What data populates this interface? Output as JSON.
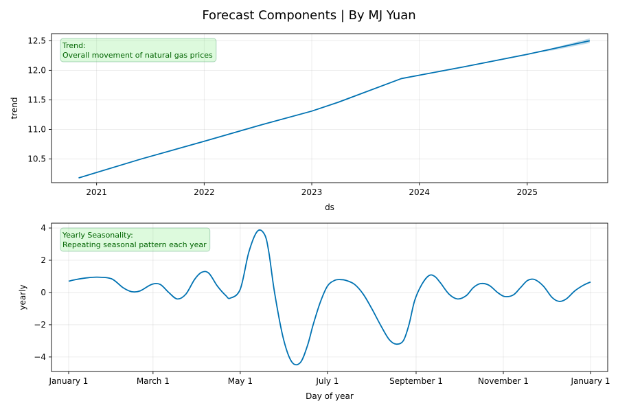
{
  "suptitle": "Forecast Components | By MJ Yuan",
  "chart_data": [
    {
      "type": "line",
      "name": "trend-panel",
      "xlabel": "ds",
      "ylabel": "trend",
      "x_axis_kind": "date",
      "xlim": [
        "2020-08-01",
        "2025-10-01"
      ],
      "ylim": [
        10.1,
        12.62
      ],
      "xticks": [
        {
          "value": "2021-01-01",
          "label": "2021"
        },
        {
          "value": "2022-01-01",
          "label": "2022"
        },
        {
          "value": "2023-01-01",
          "label": "2023"
        },
        {
          "value": "2024-01-01",
          "label": "2024"
        },
        {
          "value": "2025-01-01",
          "label": "2025"
        }
      ],
      "yticks": [
        10.5,
        11.0,
        11.5,
        12.0,
        12.5
      ],
      "ytick_labels": [
        "10.5",
        "11.0",
        "11.5",
        "12.0",
        "12.5"
      ],
      "grid": true,
      "annotation": {
        "title": "Trend:",
        "text": "Overall movement of natural gas prices"
      },
      "series": [
        {
          "x": [
            "2020-11-01",
            "2021-06-01",
            "2022-01-01",
            "2022-07-01",
            "2023-01-01",
            "2023-04-01",
            "2023-11-01",
            "2024-06-01",
            "2025-01-01",
            "2025-08-01"
          ],
          "y": [
            10.18,
            10.5,
            10.8,
            11.06,
            11.31,
            11.46,
            11.86,
            12.06,
            12.27,
            12.5
          ]
        }
      ],
      "uncertainty": {
        "x": [
          "2025-01-01",
          "2025-04-01",
          "2025-08-01"
        ],
        "lower": [
          12.27,
          12.34,
          12.46
        ],
        "upper": [
          12.27,
          12.38,
          12.54
        ]
      },
      "line_color": "#0072B2"
    },
    {
      "type": "line",
      "name": "yearly-panel",
      "xlabel": "Day of year",
      "ylabel": "yearly",
      "x_axis_kind": "day-of-year",
      "xlim": [
        -12,
        377
      ],
      "ylim": [
        -4.9,
        4.3
      ],
      "xticks": [
        {
          "value": 0,
          "label": "January 1"
        },
        {
          "value": 59,
          "label": "March 1"
        },
        {
          "value": 120,
          "label": "May 1"
        },
        {
          "value": 181,
          "label": "July 1"
        },
        {
          "value": 243,
          "label": "September 1"
        },
        {
          "value": 304,
          "label": "November 1"
        },
        {
          "value": 365,
          "label": "January 1"
        }
      ],
      "yticks": [
        -4,
        -2,
        0,
        2,
        4
      ],
      "ytick_labels": [
        "−4",
        "−2",
        "0",
        "2",
        "4"
      ],
      "grid": true,
      "annotation": {
        "title": "Yearly Seasonality:",
        "text": "Repeating seasonal pattern each year"
      },
      "series": [
        {
          "x": [
            0,
            5,
            12,
            20,
            30,
            38,
            44,
            50,
            58,
            64,
            70,
            76,
            82,
            88,
            93,
            98,
            104,
            110,
            113,
            120,
            126,
            132,
            137,
            140,
            144,
            150,
            156,
            162,
            167,
            171,
            176,
            181,
            186,
            190,
            194,
            200,
            206,
            212,
            218,
            224,
            229,
            234,
            238,
            242,
            247,
            252,
            256,
            260,
            266,
            272,
            278,
            283,
            288,
            294,
            300,
            305,
            311,
            316,
            321,
            326,
            332,
            338,
            343,
            348,
            354,
            360,
            365
          ],
          "y": [
            0.7,
            0.8,
            0.9,
            0.95,
            0.85,
            0.3,
            0.05,
            0.1,
            0.5,
            0.5,
            0.0,
            -0.4,
            -0.1,
            0.8,
            1.25,
            1.2,
            0.4,
            -0.2,
            -0.35,
            0.2,
            2.5,
            3.8,
            3.6,
            2.5,
            0.0,
            -2.8,
            -4.3,
            -4.35,
            -3.3,
            -2.0,
            -0.6,
            0.4,
            0.75,
            0.8,
            0.75,
            0.5,
            -0.1,
            -1.0,
            -2.0,
            -2.9,
            -3.2,
            -3.0,
            -2.0,
            -0.5,
            0.5,
            1.05,
            1.0,
            0.6,
            -0.1,
            -0.4,
            -0.2,
            0.3,
            0.55,
            0.45,
            0.0,
            -0.25,
            -0.15,
            0.3,
            0.75,
            0.8,
            0.4,
            -0.3,
            -0.55,
            -0.4,
            0.1,
            0.45,
            0.65
          ]
        }
      ],
      "line_color": "#0072B2"
    }
  ]
}
